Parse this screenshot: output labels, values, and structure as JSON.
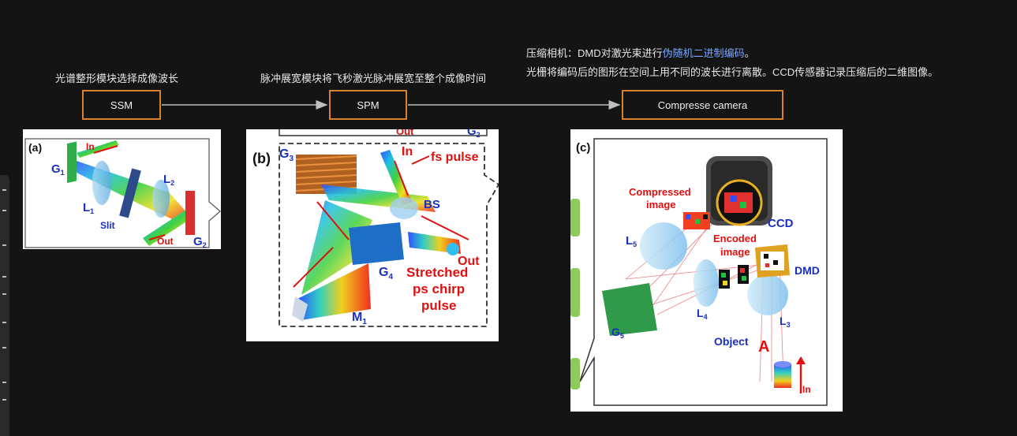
{
  "captions": {
    "ssm": "光谱整形模块选择成像波长",
    "spm": "脉冲展宽模块将飞秒激光脉冲展宽至整个成像时间",
    "camera_line1_prefix": "压缩相机：DMD对激光束进行",
    "camera_line1_highlight": "伪随机二进制编码",
    "camera_line1_suffix": "。",
    "camera_line2": "光栅将编码后的图形在空间上用不同的波长进行离散。CCD传感器记录压缩后的二维图像。"
  },
  "flow": {
    "nodes": [
      {
        "id": "ssm",
        "label": "SSM"
      },
      {
        "id": "spm",
        "label": "SPM"
      },
      {
        "id": "camera",
        "label": "Compresse camera"
      }
    ],
    "edges": [
      {
        "from": "ssm",
        "to": "spm"
      },
      {
        "from": "spm",
        "to": "camera"
      }
    ]
  },
  "panel_a": {
    "tag": "(a)",
    "labels": {
      "in": "In",
      "out": "Out",
      "g1": "G",
      "g1_sub": "1",
      "l1": "L",
      "l1_sub": "1",
      "l2": "L",
      "l2_sub": "2",
      "g2": "G",
      "g2_sub": "2",
      "slit": "Slit"
    }
  },
  "panel_b": {
    "tag": "(b)",
    "labels": {
      "g3": "G",
      "g3_sub": "3",
      "in": "In",
      "fs_pulse": "fs pulse",
      "bs": "BS",
      "out": "Out",
      "g4": "G",
      "g4_sub": "4",
      "m1": "M",
      "m1_sub": "1",
      "stretched_1": "Stretched",
      "stretched_2": "ps chirp",
      "stretched_3": "pulse",
      "top_out": "Out",
      "top_g2": "G",
      "top_g2_sub": "2"
    }
  },
  "panel_c": {
    "tag": "(c)",
    "labels": {
      "compressed_1": "Compressed",
      "compressed_2": "image",
      "ccd": "CCD",
      "l5": "L",
      "l5_sub": "5",
      "encoded_1": "Encoded",
      "encoded_2": "image",
      "dmd": "DMD",
      "l4": "L",
      "l4_sub": "4",
      "g5": "G",
      "g5_sub": "5",
      "l3": "L",
      "l3_sub": "3",
      "object": "Object",
      "object_letter": "A",
      "in": "In"
    }
  },
  "colors": {
    "box_border": "#d9822b",
    "label_blue": "#1a2fbf",
    "label_red": "#e01010",
    "link": "#7aa7ff"
  }
}
